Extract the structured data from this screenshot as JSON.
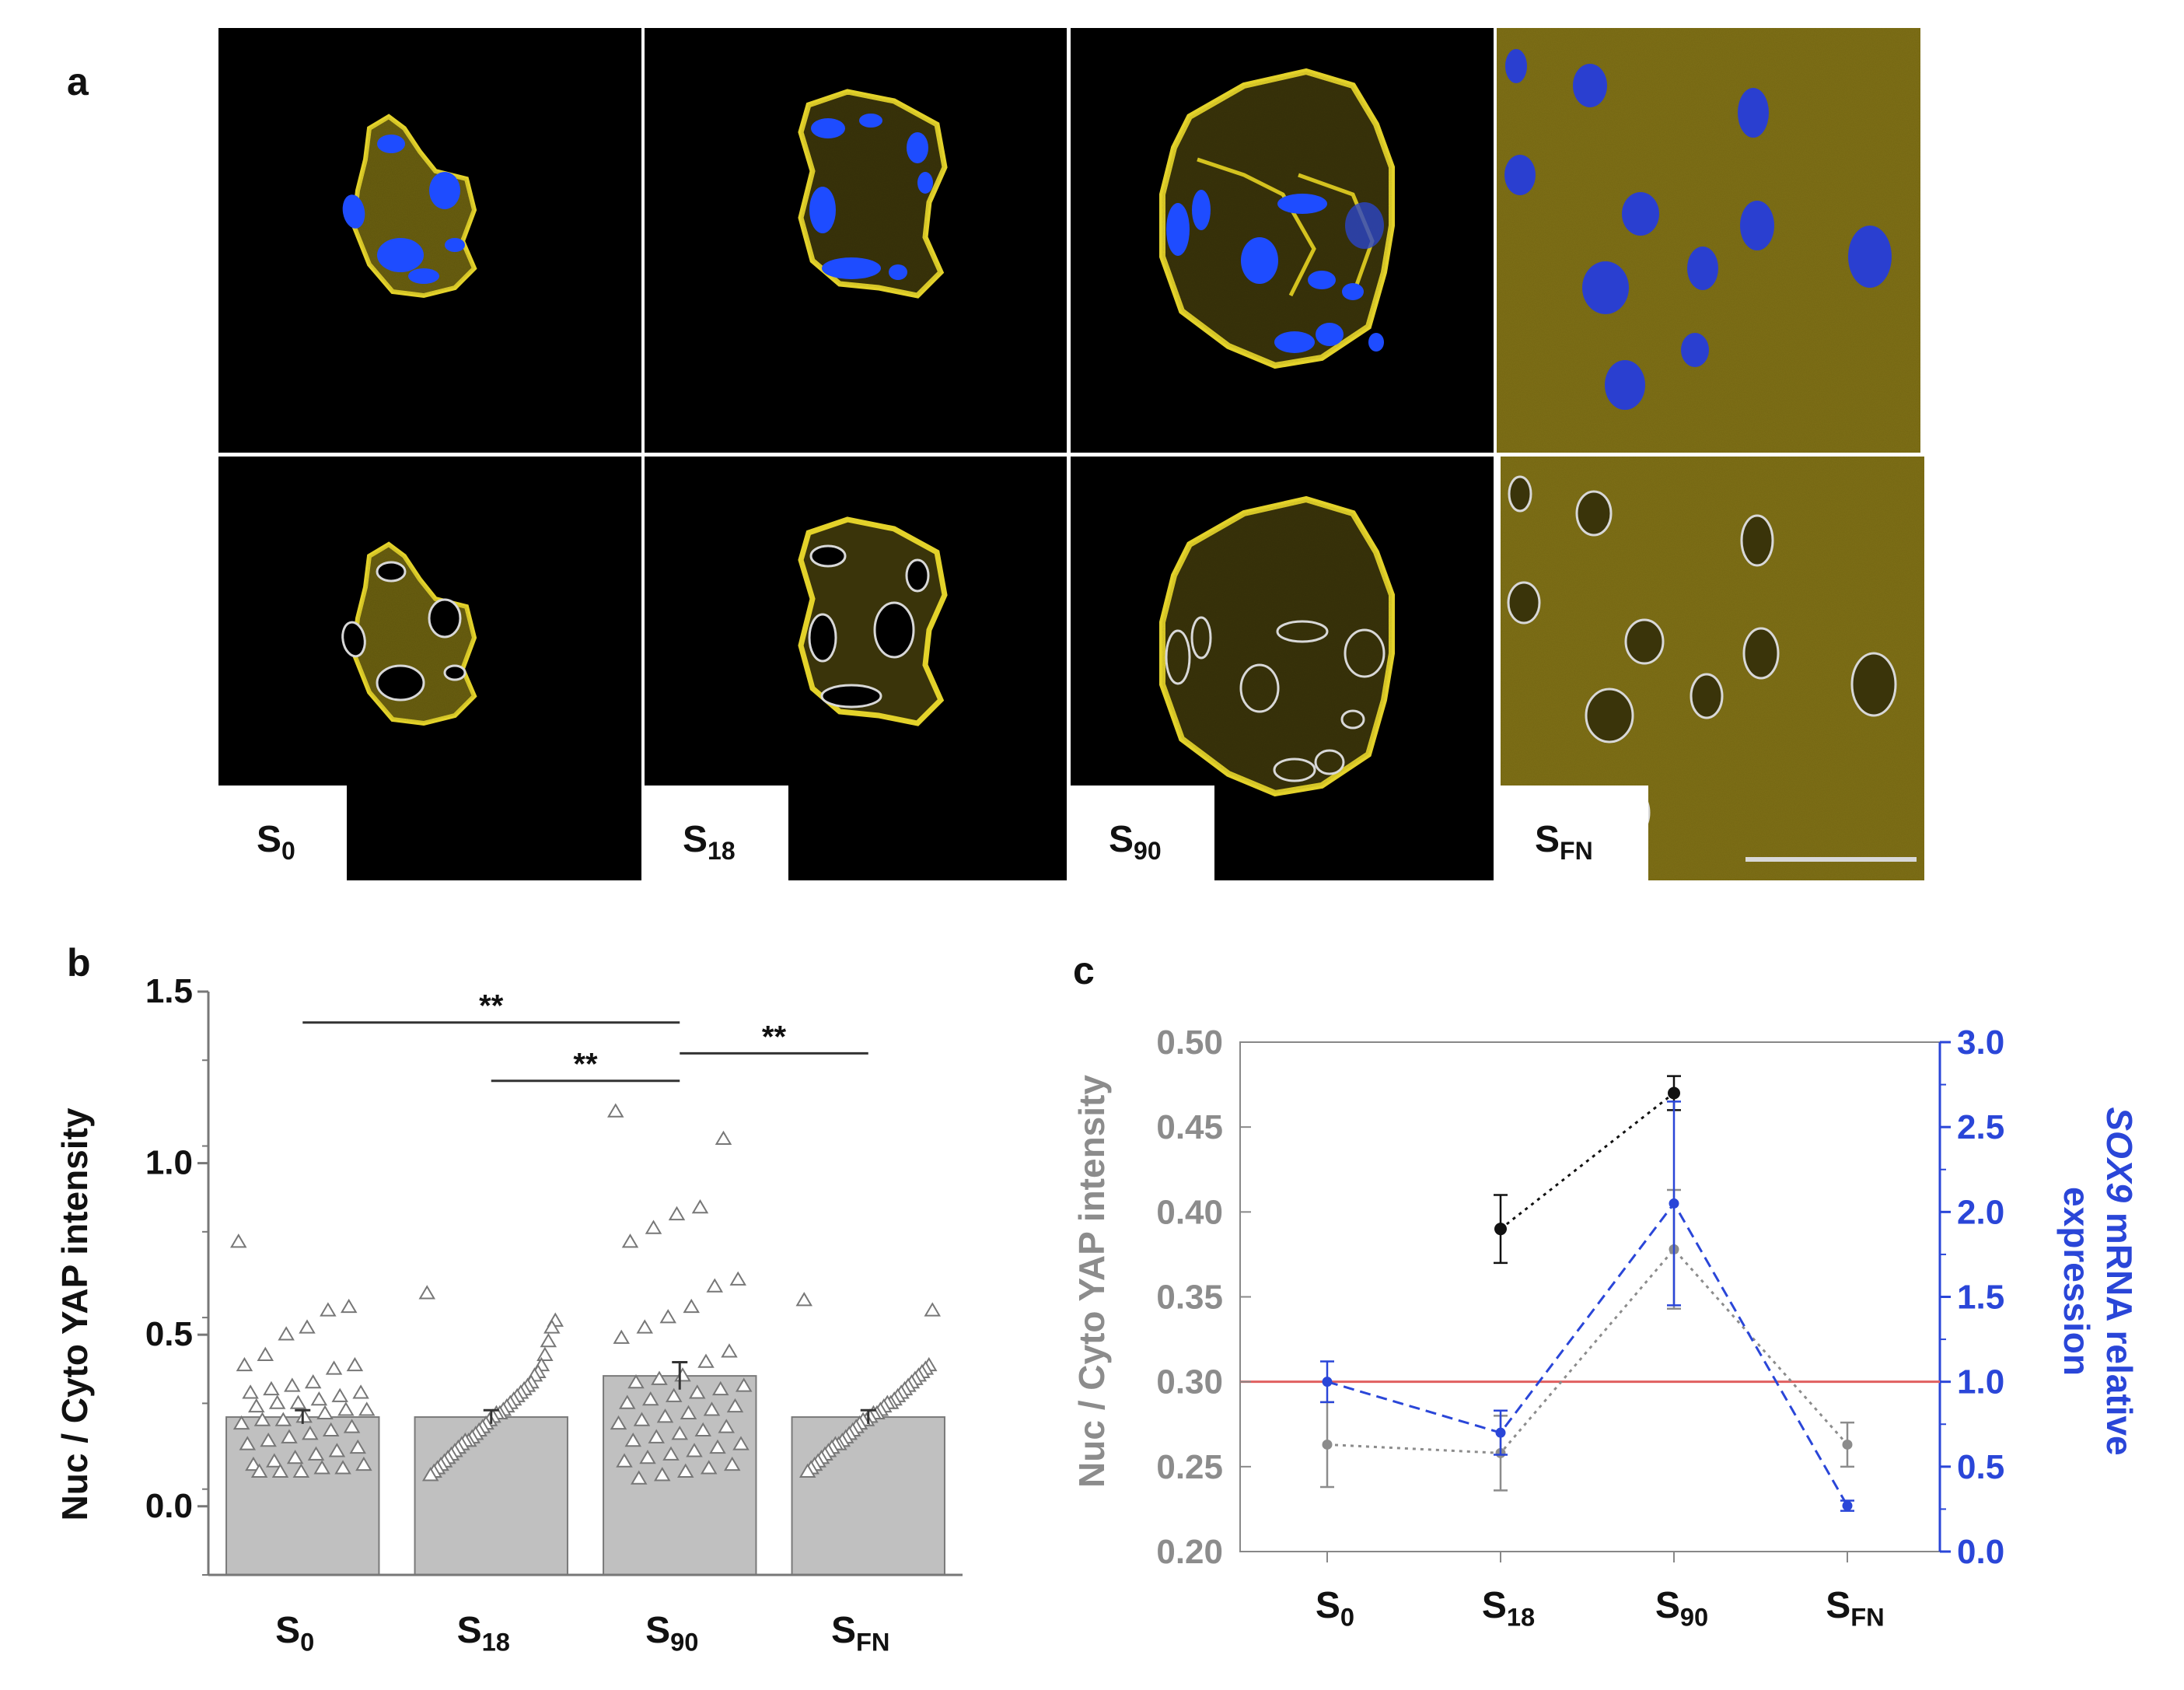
{
  "panel_letters": [
    "a",
    "b",
    "c"
  ],
  "panel_a": {
    "images": [
      {
        "label_main": "S",
        "label_sub": "0"
      },
      {
        "label_main": "S",
        "label_sub": "18"
      },
      {
        "label_main": "S",
        "label_sub": "90"
      },
      {
        "label_main": "S",
        "label_sub": "FN"
      }
    ],
    "channel_colors": {
      "yap": "#d4c21f",
      "nuclei": "#1e4cff",
      "outline": "#d8d8d8"
    }
  },
  "chart_data": [
    {
      "id": "b",
      "type": "bar",
      "categories": [
        {
          "main": "S",
          "sub": "0"
        },
        {
          "main": "S",
          "sub": "18"
        },
        {
          "main": "S",
          "sub": "90"
        },
        {
          "main": "S",
          "sub": "FN"
        }
      ],
      "values": [
        0.26,
        0.26,
        0.38,
        0.26
      ],
      "errors": [
        0.02,
        0.02,
        0.04,
        0.02
      ],
      "ylabel": "Nuc / Cyto YAP intensity",
      "ylim": [
        -0.2,
        1.5
      ],
      "yticks": [
        {
          "v": 0.0,
          "label": "0.0"
        },
        {
          "v": 0.5,
          "label": "0.5"
        },
        {
          "v": 1.0,
          "label": "1.0"
        },
        {
          "v": 1.5,
          "label": "1.5"
        }
      ],
      "bar_color": "#c0c0c0",
      "points": [
        [
          0.77,
          0.58,
          0.57,
          0.52,
          0.5,
          0.44,
          0.41,
          0.41,
          0.4,
          0.36,
          0.35,
          0.34,
          0.33,
          0.33,
          0.32,
          0.31,
          0.3,
          0.3,
          0.29,
          0.28,
          0.28,
          0.27,
          0.26,
          0.25,
          0.25,
          0.24,
          0.23,
          0.22,
          0.21,
          0.2,
          0.19,
          0.18,
          0.17,
          0.16,
          0.15,
          0.14,
          0.13,
          0.12,
          0.12,
          0.11,
          0.11,
          0.1,
          0.1,
          0.1
        ],
        [
          0.62,
          0.54,
          0.52,
          0.48,
          0.44,
          0.41,
          0.39,
          0.38,
          0.36,
          0.35,
          0.34,
          0.33,
          0.32,
          0.31,
          0.3,
          0.29,
          0.28,
          0.27,
          0.27,
          0.26,
          0.25,
          0.24,
          0.23,
          0.22,
          0.21,
          0.2,
          0.19,
          0.19,
          0.18,
          0.17,
          0.16,
          0.15,
          0.14,
          0.13,
          0.12,
          0.11,
          0.1,
          0.09
        ],
        [
          1.15,
          1.07,
          0.87,
          0.85,
          0.81,
          0.77,
          0.66,
          0.64,
          0.58,
          0.55,
          0.52,
          0.49,
          0.45,
          0.42,
          0.38,
          0.37,
          0.36,
          0.35,
          0.34,
          0.33,
          0.32,
          0.31,
          0.3,
          0.29,
          0.28,
          0.27,
          0.26,
          0.25,
          0.24,
          0.23,
          0.22,
          0.21,
          0.2,
          0.19,
          0.18,
          0.17,
          0.16,
          0.15,
          0.14,
          0.13,
          0.12,
          0.11,
          0.1,
          0.09,
          0.08
        ],
        [
          0.6,
          0.57,
          0.41,
          0.4,
          0.39,
          0.38,
          0.37,
          0.36,
          0.35,
          0.34,
          0.33,
          0.32,
          0.31,
          0.3,
          0.3,
          0.29,
          0.28,
          0.27,
          0.27,
          0.26,
          0.25,
          0.25,
          0.24,
          0.23,
          0.22,
          0.21,
          0.2,
          0.19,
          0.18,
          0.18,
          0.17,
          0.16,
          0.15,
          0.14,
          0.13,
          0.12,
          0.11,
          0.1
        ]
      ],
      "significance": [
        {
          "from": 0,
          "to": 2,
          "y": 1.41,
          "label": "**"
        },
        {
          "from": 1,
          "to": 2,
          "y": 1.24,
          "label": "**"
        },
        {
          "from": 2,
          "to": 3,
          "y": 1.32,
          "label": "**"
        }
      ]
    },
    {
      "id": "c",
      "type": "line",
      "categories": [
        {
          "main": "S",
          "sub": "0"
        },
        {
          "main": "S",
          "sub": "18"
        },
        {
          "main": "S",
          "sub": "90"
        },
        {
          "main": "S",
          "sub": "FN"
        }
      ],
      "ylabel_left": "Nuc / Cyto YAP intensity",
      "ylabel_right_italic": "SOX9",
      "ylabel_right_rest": " mRNA relative",
      "ylabel_right_line2": "expression",
      "ylim_left": [
        0.2,
        0.5
      ],
      "ylim_right": [
        0.0,
        3.0
      ],
      "yticks_left": [
        "0.20",
        "0.25",
        "0.30",
        "0.35",
        "0.40",
        "0.45",
        "0.50"
      ],
      "yticks_right": [
        "0.0",
        "0.5",
        "1.0",
        "1.5",
        "2.0",
        "2.5",
        "3.0"
      ],
      "reference_line": {
        "axis": "left",
        "value": 0.3,
        "color": "#e06060"
      },
      "series": [
        {
          "axis": "left",
          "color": "#111111",
          "values": [
            null,
            0.39,
            0.47,
            null
          ],
          "errors": [
            null,
            0.02,
            0.01,
            null
          ]
        },
        {
          "axis": "left",
          "color": "#8c8c8c",
          "values": [
            0.263,
            0.258,
            0.378,
            0.263
          ],
          "errors": [
            0.025,
            0.022,
            0.035,
            0.013
          ]
        },
        {
          "axis": "right",
          "color": "#2a46d8",
          "values": [
            1.0,
            0.7,
            2.05,
            0.27
          ],
          "errors": [
            0.12,
            0.13,
            0.6,
            0.03
          ]
        }
      ],
      "left_color": "#8c8c8c",
      "right_color": "#2a46d8"
    }
  ]
}
